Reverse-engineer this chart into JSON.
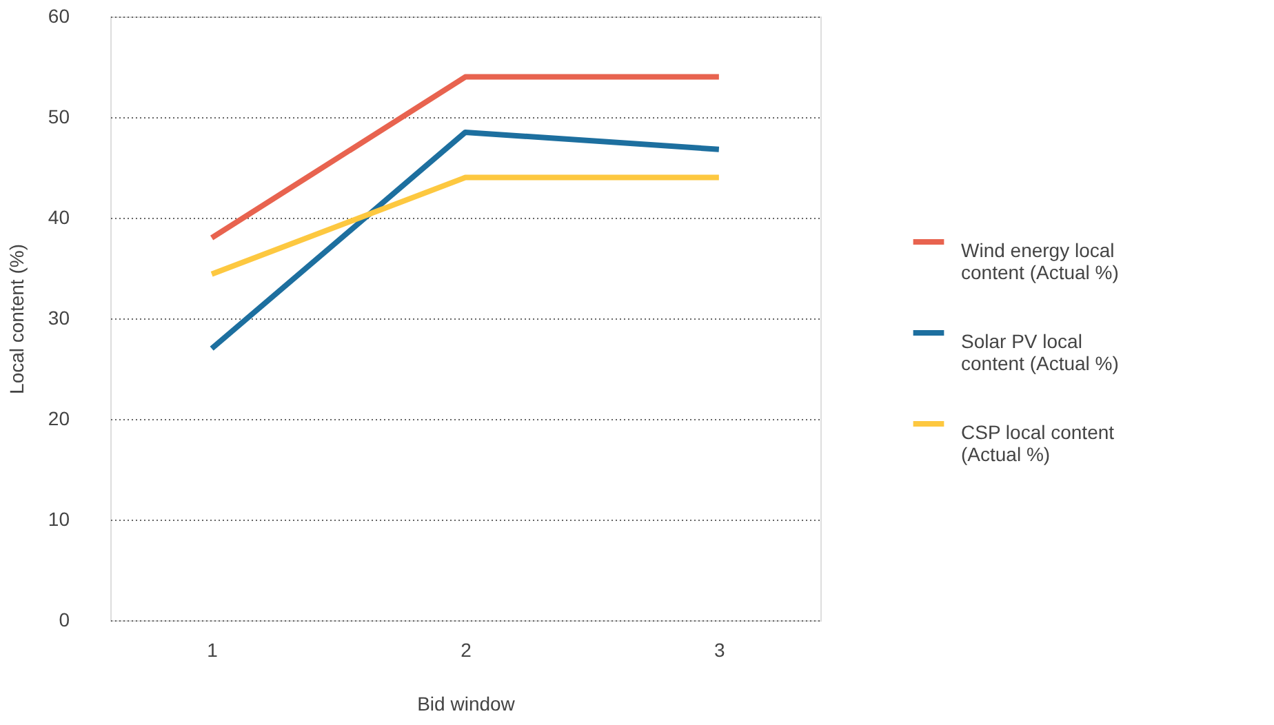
{
  "chart_data": {
    "type": "line",
    "xlabel": "Bid window",
    "ylabel": "Local content (%)",
    "categories": [
      "1",
      "2",
      "3"
    ],
    "series": [
      {
        "name": "Wind energy local content (Actual %)",
        "color": "#e8634f",
        "values": [
          38,
          54,
          54
        ]
      },
      {
        "name": "Solar PV local content (Actual %)",
        "color": "#1d6f9f",
        "values": [
          27,
          48.5,
          46.8
        ]
      },
      {
        "name": "CSP local content (Actual %)",
        "color": "#fdc840",
        "values": [
          34.4,
          44,
          44
        ]
      }
    ],
    "ylim": [
      0,
      60
    ],
    "yticks": [
      0,
      10,
      20,
      30,
      40,
      50,
      60
    ],
    "grid": "y",
    "legend": "right",
    "marker": "none",
    "line_style": "solid"
  }
}
